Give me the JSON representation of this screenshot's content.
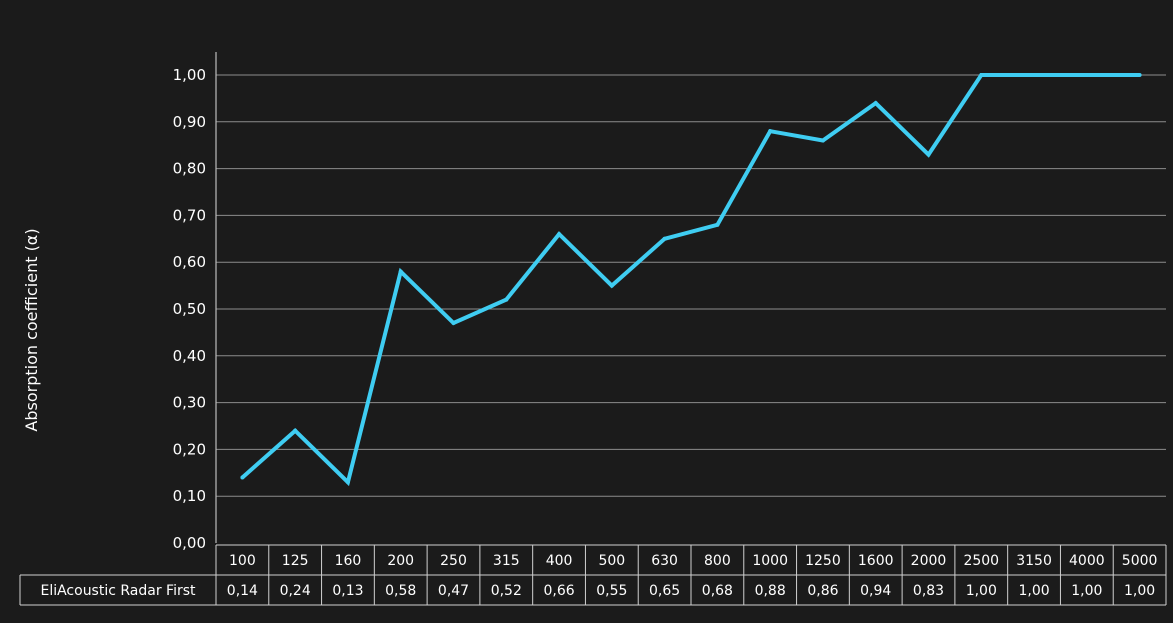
{
  "chart_data": {
    "type": "line",
    "ylabel": "Absorption coefficient (α)",
    "xlabel": "",
    "ylim": [
      0,
      1
    ],
    "yticks": [
      "0,00",
      "0,10",
      "0,20",
      "0,30",
      "0,40",
      "0,50",
      "0,60",
      "0,70",
      "0,80",
      "0,90",
      "1,00"
    ],
    "grid": true,
    "categories": [
      "100",
      "125",
      "160",
      "200",
      "250",
      "315",
      "400",
      "500",
      "630",
      "800",
      "1000",
      "1250",
      "1600",
      "2000",
      "2500",
      "3150",
      "4000",
      "5000"
    ],
    "series": [
      {
        "name": "EliAcoustic Radar First",
        "color": "#3fcdf2",
        "values": [
          0.14,
          0.24,
          0.13,
          0.58,
          0.47,
          0.52,
          0.66,
          0.55,
          0.65,
          0.68,
          0.88,
          0.86,
          0.94,
          0.83,
          1.0,
          1.0,
          1.0,
          1.0
        ],
        "labels": [
          "0,14",
          "0,24",
          "0,13",
          "0,58",
          "0,47",
          "0,52",
          "0,66",
          "0,55",
          "0,65",
          "0,68",
          "0,88",
          "0,86",
          "0,94",
          "0,83",
          "1,00",
          "1,00",
          "1,00",
          "1,00"
        ]
      }
    ]
  }
}
